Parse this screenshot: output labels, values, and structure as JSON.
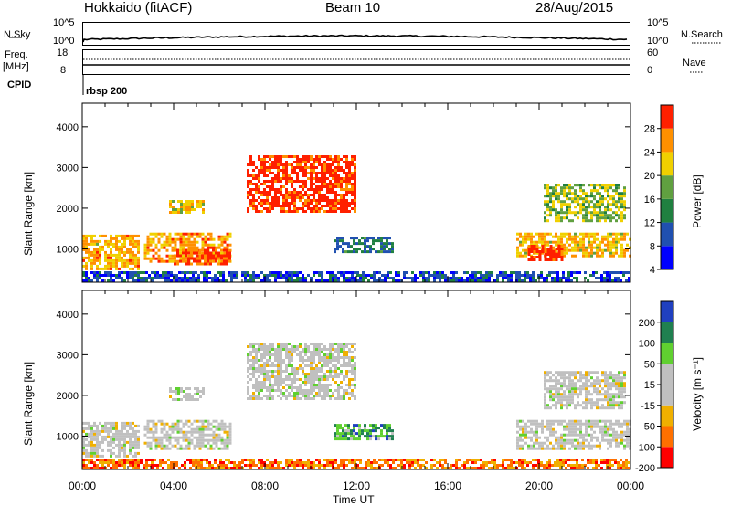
{
  "header": {
    "title_left": "Hokkaido (fitACF)",
    "title_center": "Beam 10",
    "title_right": "28/Aug/2015"
  },
  "summary": {
    "nsky_label": "N.Sky",
    "nsky_ticks": [
      "10^5",
      "10^0"
    ],
    "nsearch_label": "N.Search",
    "nsearch_ticks": [
      "10^5",
      "10^0"
    ],
    "freq_label": "Freq.",
    "freq_unit": "[MHz]",
    "freq_ticks": [
      "18",
      "8"
    ],
    "nave_label": "Nave",
    "nave_ticks": [
      "60",
      "0"
    ],
    "cpid_label": "CPID",
    "cpid_value": "rbsp 200"
  },
  "chart_data": [
    {
      "type": "heatmap",
      "name": "power",
      "ylabel": "Slant Range [km]",
      "yticks": [
        1000,
        2000,
        3000,
        4000
      ],
      "ylim": [
        180,
        4580
      ],
      "xlim": [
        0,
        24
      ],
      "colorbar_label": "Power [dB]",
      "colorbar_ticks": [
        "28",
        "24",
        "20",
        "16",
        "12",
        "8",
        "4"
      ],
      "colorscale": [
        "#0000ff",
        "#2050b0",
        "#208040",
        "#60a040",
        "#f0d000",
        "#ff9000",
        "#ff2000"
      ],
      "echo_regions": [
        {
          "t": [
            0.0,
            2.5
          ],
          "r": [
            500,
            1350
          ],
          "level": 0.72
        },
        {
          "t": [
            2.7,
            6.5
          ],
          "r": [
            700,
            1400
          ],
          "level": 0.75
        },
        {
          "t": [
            4.0,
            6.5
          ],
          "r": [
            650,
            1000
          ],
          "level": 0.9
        },
        {
          "t": [
            7.2,
            11.9
          ],
          "r": [
            1900,
            3300
          ],
          "level": 0.95
        },
        {
          "t": [
            3.8,
            5.3
          ],
          "r": [
            1900,
            2200
          ],
          "level": 0.65
        },
        {
          "t": [
            11.0,
            13.6
          ],
          "r": [
            900,
            1300
          ],
          "level": 0.3
        },
        {
          "t": [
            19.0,
            24.0
          ],
          "r": [
            800,
            1400
          ],
          "level": 0.7
        },
        {
          "t": [
            19.5,
            21.0
          ],
          "r": [
            700,
            1100
          ],
          "level": 0.95
        },
        {
          "t": [
            20.2,
            23.8
          ],
          "r": [
            1700,
            2600
          ],
          "level": 0.55
        },
        {
          "t": [
            0.0,
            24.0
          ],
          "r": [
            200,
            450
          ],
          "level": 0.2
        }
      ]
    },
    {
      "type": "heatmap",
      "name": "velocity",
      "ylabel": "Slant Range [km]",
      "yticks": [
        1000,
        2000,
        3000,
        4000
      ],
      "ylim": [
        180,
        4580
      ],
      "xlim": [
        0,
        24
      ],
      "xticks": [
        "00:00",
        "04:00",
        "08:00",
        "12:00",
        "16:00",
        "20:00",
        "00:00"
      ],
      "xlabel": "Time UT",
      "colorbar_label": "Velocity [m s⁻¹]",
      "colorbar_ticks": [
        "200",
        "100",
        "50",
        "15",
        "-15",
        "-50",
        "-100",
        "-200"
      ],
      "colorscale": [
        "#ff0000",
        "#ff7000",
        "#f0b000",
        "#c0c0c0",
        "#c0c0c0",
        "#60d030",
        "#208050",
        "#2040c0"
      ],
      "echo_regions": [
        {
          "t": [
            0.0,
            2.5
          ],
          "r": [
            500,
            1350
          ],
          "level": 0.5
        },
        {
          "t": [
            2.7,
            6.5
          ],
          "r": [
            700,
            1400
          ],
          "level": 0.5
        },
        {
          "t": [
            7.2,
            11.9
          ],
          "r": [
            1900,
            3300
          ],
          "level": 0.5
        },
        {
          "t": [
            3.8,
            5.3
          ],
          "r": [
            1900,
            2200
          ],
          "level": 0.5
        },
        {
          "t": [
            11.0,
            13.6
          ],
          "r": [
            900,
            1300
          ],
          "level": 0.75
        },
        {
          "t": [
            19.0,
            24.0
          ],
          "r": [
            700,
            1400
          ],
          "level": 0.5
        },
        {
          "t": [
            20.2,
            23.8
          ],
          "r": [
            1700,
            2600
          ],
          "level": 0.5
        },
        {
          "t": [
            0.0,
            24.0
          ],
          "r": [
            200,
            450
          ],
          "level": 0.2
        }
      ]
    }
  ]
}
